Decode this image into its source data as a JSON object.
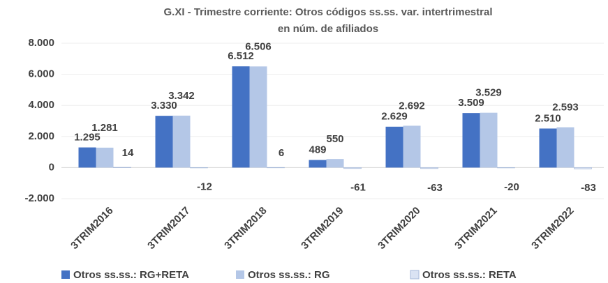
{
  "chart_data": {
    "type": "bar",
    "title": [
      "G.XI - Trimestre corriente: Otros códigos ss.ss. var. intertrimestral",
      "en núm. de afiliados"
    ],
    "categories": [
      "3TRIM2016",
      "3TRIM2017",
      "3TRIM2018",
      "3TRIM2019",
      "3TRIM2020",
      "3TRIM2021",
      "3TRIM2022"
    ],
    "series": [
      {
        "name": "Otros ss.ss.: RG+RETA",
        "color": "#4472c4",
        "values": [
          1295,
          3330,
          6512,
          489,
          2629,
          3509,
          2510
        ],
        "value_labels": [
          "1.295",
          "3.330",
          "6.512",
          "489",
          "2.629",
          "3.509",
          "2.510"
        ]
      },
      {
        "name": "Otros ss.ss.: RG",
        "color": "#b4c7e7",
        "values": [
          1281,
          3342,
          6506,
          550,
          2692,
          3529,
          2593
        ],
        "value_labels": [
          "1.281",
          "3.342",
          "6.506",
          "550",
          "2.692",
          "3.529",
          "2.593"
        ]
      },
      {
        "name": "Otros ss.ss.: RETA",
        "color": "#dae3f3",
        "values": [
          14,
          -12,
          6,
          -61,
          -63,
          -20,
          -83
        ]
      }
    ],
    "ylim": [
      -2000,
      8000
    ],
    "yticks": [
      {
        "value": -2000,
        "label": "-2.000"
      },
      0,
      {
        "value": 2000,
        "label": "2.000"
      },
      {
        "value": 4000,
        "label": "4.000"
      },
      {
        "value": 6000,
        "label": "6.000"
      },
      {
        "value": 8000,
        "label": "8.000"
      }
    ],
    "grid": true
  }
}
